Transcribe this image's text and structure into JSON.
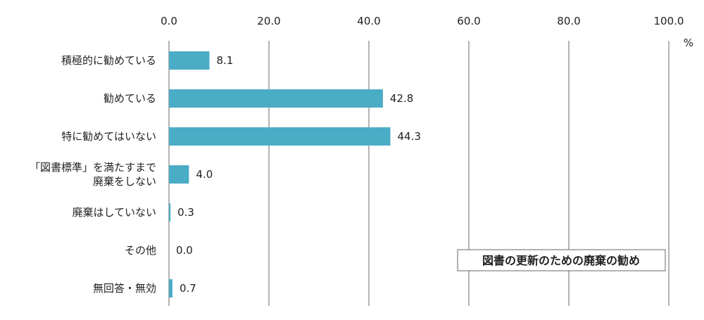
{
  "chart_data": {
    "type": "bar",
    "orientation": "horizontal",
    "title": "図書の更新のための廃棄の勧め",
    "unit": "%",
    "xlim": [
      0,
      100
    ],
    "ticks": [
      "0.0",
      "20.0",
      "40.0",
      "60.0",
      "80.0",
      "100.0"
    ],
    "tick_values": [
      0,
      20,
      40,
      60,
      80,
      100
    ],
    "grid": true,
    "legend": "none",
    "categories": [
      [
        "積極的に勧めている"
      ],
      [
        "勧めている"
      ],
      [
        "特に勧めてはいない"
      ],
      [
        "「図書標準」を満たすまで",
        "廃棄をしない"
      ],
      [
        "廃棄はしていない"
      ],
      [
        "その他"
      ],
      [
        "無回答・無効"
      ]
    ],
    "values": [
      8.1,
      42.8,
      44.3,
      4.0,
      0.3,
      0.0,
      0.7
    ],
    "value_labels": [
      "8.1",
      "42.8",
      "44.3",
      "4.0",
      "0.3",
      "0.0",
      "0.7"
    ],
    "bar_color": "#4bacc6",
    "grid_color": "#8c8c8c"
  }
}
